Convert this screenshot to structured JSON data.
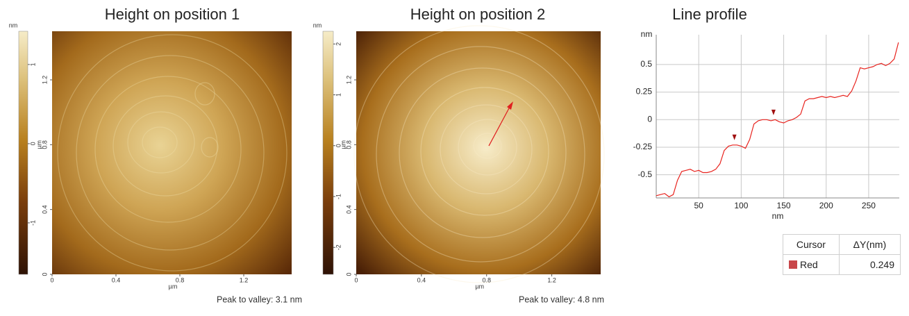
{
  "chart_data": [
    {
      "type": "image",
      "title": "Height on position 1",
      "xlim": [
        0,
        1.5
      ],
      "ylim": [
        0,
        1.5
      ],
      "xticks": [
        0,
        0.4,
        0.8,
        1.2
      ],
      "yticks": [
        0,
        0.4,
        0.8,
        1.2
      ],
      "x_label": "µm",
      "y_label": "µm",
      "colorbar_label": "nm",
      "clim": [
        -1.65,
        1.42
      ],
      "cticks": [
        -1,
        0,
        1
      ],
      "annotation": "Peak to valley: 3.1 nm"
    },
    {
      "type": "image",
      "title": "Height on position 2",
      "xlim": [
        0,
        1.5
      ],
      "ylim": [
        0,
        1.5
      ],
      "xticks": [
        0,
        0.4,
        0.8,
        1.2
      ],
      "yticks": [
        0,
        0.4,
        0.8,
        1.2
      ],
      "x_label": "µm",
      "y_label": "µm",
      "colorbar_label": "nm",
      "clim": [
        -2.53,
        2.25
      ],
      "cticks": [
        -2,
        -1,
        0,
        1,
        2
      ],
      "annotation": "Peak to valley: 4.8 nm"
    },
    {
      "type": "line",
      "title": "Line profile",
      "x_label": "nm",
      "y_label": "nm",
      "color": "#e8231e",
      "x": [
        0,
        5,
        10,
        15,
        20,
        25,
        30,
        35,
        40,
        45,
        50,
        55,
        60,
        65,
        70,
        75,
        80,
        85,
        90,
        95,
        100,
        105,
        110,
        115,
        120,
        125,
        130,
        135,
        140,
        145,
        150,
        155,
        160,
        165,
        170,
        175,
        180,
        185,
        190,
        195,
        200,
        205,
        210,
        215,
        220,
        225,
        230,
        235,
        240,
        245,
        250,
        255,
        260,
        265,
        270,
        275,
        280,
        285
      ],
      "values": [
        -0.69,
        -0.68,
        -0.67,
        -0.7,
        -0.68,
        -0.55,
        -0.47,
        -0.46,
        -0.45,
        -0.47,
        -0.46,
        -0.48,
        -0.48,
        -0.47,
        -0.45,
        -0.4,
        -0.28,
        -0.24,
        -0.23,
        -0.23,
        -0.24,
        -0.26,
        -0.18,
        -0.04,
        -0.01,
        0,
        0,
        -0.01,
        0,
        -0.02,
        -0.03,
        -0.01,
        0,
        0.02,
        0.05,
        0.17,
        0.19,
        0.19,
        0.2,
        0.21,
        0.2,
        0.21,
        0.2,
        0.21,
        0.22,
        0.21,
        0.26,
        0.35,
        0.47,
        0.46,
        0.47,
        0.48,
        0.5,
        0.51,
        0.49,
        0.51,
        0.55,
        0.7
      ],
      "xlim": [
        0,
        286
      ],
      "ylim": [
        -0.71,
        0.77
      ],
      "xticks": [
        50,
        100,
        150,
        200,
        250
      ],
      "yticks": [
        -0.5,
        -0.25,
        0,
        0.25,
        0.5
      ],
      "grid": true,
      "cursor_x": [
        92,
        138
      ],
      "cursor_color": "#a01010"
    }
  ],
  "table": {
    "headers": [
      "Cursor",
      "ΔY(nm)"
    ],
    "rows": [
      [
        "Red",
        "0.249"
      ]
    ]
  }
}
